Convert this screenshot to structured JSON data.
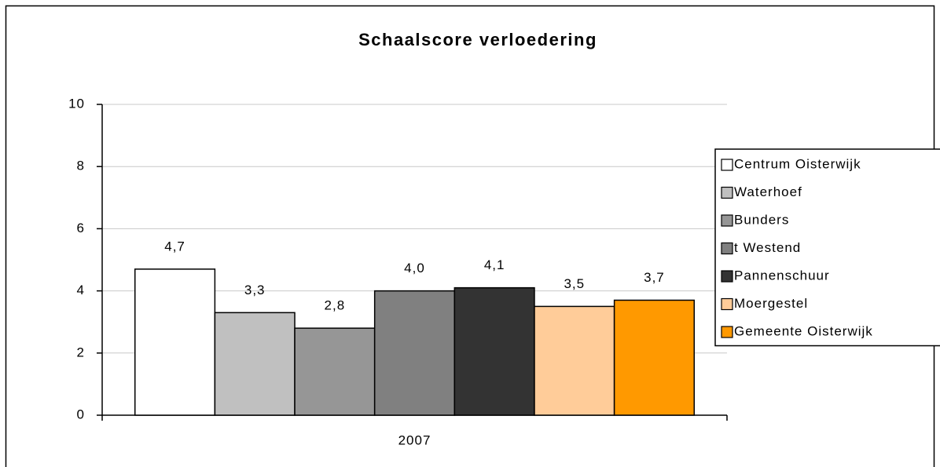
{
  "chart_data": {
    "type": "bar",
    "title": "Schaalscore verloedering",
    "categories": [
      "2007"
    ],
    "series": [
      {
        "name": "Centrum Oisterwijk",
        "color": "#ffffff",
        "values": [
          4.7
        ],
        "value_labels": [
          "4,7"
        ]
      },
      {
        "name": "Waterhoef",
        "color": "#c0c0c0",
        "values": [
          3.3
        ],
        "value_labels": [
          "3,3"
        ]
      },
      {
        "name": "Bunders",
        "color": "#969696",
        "values": [
          2.8
        ],
        "value_labels": [
          "2,8"
        ]
      },
      {
        "name": "t Westend",
        "color": "#808080",
        "values": [
          4.0
        ],
        "value_labels": [
          "4,0"
        ]
      },
      {
        "name": "Pannenschuur",
        "color": "#333333",
        "values": [
          4.1
        ],
        "value_labels": [
          "4,1"
        ]
      },
      {
        "name": "Moergestel",
        "color": "#ffcc99",
        "values": [
          3.5
        ],
        "value_labels": [
          "3,5"
        ]
      },
      {
        "name": "Gemeente Oisterwijk",
        "color": "#ff9900",
        "values": [
          3.7
        ],
        "value_labels": [
          "3,7"
        ]
      }
    ],
    "ylim": [
      0,
      10
    ],
    "yticks": [
      0,
      2,
      4,
      6,
      8,
      10
    ],
    "grid": true,
    "legend": "right"
  }
}
